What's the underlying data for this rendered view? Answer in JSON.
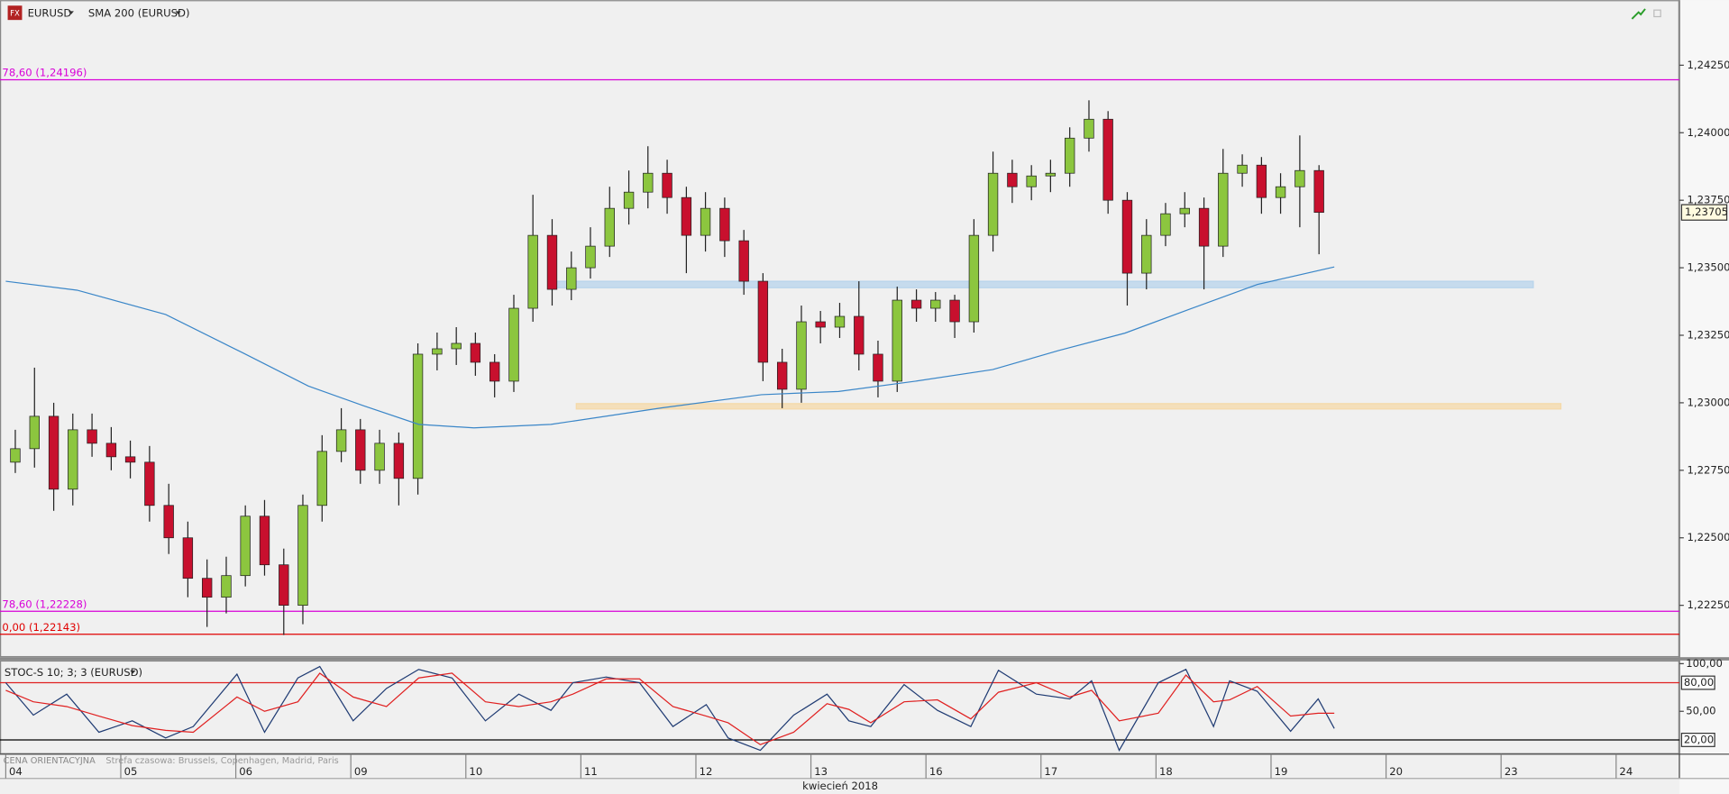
{
  "toolbar": {
    "icon": "FX",
    "symbol": "EURUSD"
  },
  "footer": {
    "price_type": "CENA ORIENTACYJNA",
    "timezone": "Strefa czasowa: Brussels, Copenhagen, Madrid, Paris"
  },
  "chart_data": [
    {
      "type": "candlestick",
      "symbol": "EURUSD",
      "up_color": "#8cc63f",
      "down_color": "#c8102e",
      "xlabel": "kwiecień 2018",
      "xlim": [
        -0.05,
        14.55
      ],
      "xticks": [
        {
          "value": 0,
          "label": "04"
        },
        {
          "value": 1,
          "label": "05"
        },
        {
          "value": 2,
          "label": "06"
        },
        {
          "value": 3,
          "label": "09"
        },
        {
          "value": 4,
          "label": "10"
        },
        {
          "value": 5,
          "label": "11"
        },
        {
          "value": 6,
          "label": "12"
        },
        {
          "value": 7,
          "label": "13"
        },
        {
          "value": 8,
          "label": "16"
        },
        {
          "value": 9,
          "label": "17"
        },
        {
          "value": 10,
          "label": "18"
        },
        {
          "value": 11,
          "label": "19"
        },
        {
          "value": 12,
          "label": "20"
        },
        {
          "value": 13,
          "label": "23"
        },
        {
          "value": 14,
          "label": "24"
        }
      ],
      "ylim": [
        1.22058,
        1.24491
      ],
      "yticks": [
        {
          "value": 1.2225,
          "label": "1,22250"
        },
        {
          "value": 1.225,
          "label": "1,22500"
        },
        {
          "value": 1.2275,
          "label": "1,22750"
        },
        {
          "value": 1.23,
          "label": "1,23000"
        },
        {
          "value": 1.2325,
          "label": "1,23250"
        },
        {
          "value": 1.235,
          "label": "1,23500"
        },
        {
          "value": 1.2375,
          "label": "1,23750"
        },
        {
          "value": 1.24,
          "label": "1,24000"
        },
        {
          "value": 1.2425,
          "label": "1,24250"
        }
      ],
      "last_price": {
        "value": 1.23705,
        "label": "1,23705"
      },
      "x": [
        0.083,
        0.25,
        0.417,
        0.583,
        0.75,
        0.917,
        1.083,
        1.25,
        1.417,
        1.583,
        1.75,
        1.917,
        2.083,
        2.25,
        2.417,
        2.583,
        2.75,
        2.917,
        3.083,
        3.25,
        3.417,
        3.583,
        3.75,
        3.917,
        4.083,
        4.25,
        4.417,
        4.583,
        4.75,
        4.917,
        5.083,
        5.25,
        5.417,
        5.583,
        5.75,
        5.917,
        6.083,
        6.25,
        6.417,
        6.583,
        6.75,
        6.917,
        7.083,
        7.25,
        7.417,
        7.583,
        7.75,
        7.917,
        8.083,
        8.25,
        8.417,
        8.583,
        8.75,
        8.917,
        9.083,
        9.25,
        9.417,
        9.583,
        9.75,
        9.917,
        10.083,
        10.25,
        10.417,
        10.583,
        10.75,
        10.917,
        11.083,
        11.25,
        11.417
      ],
      "open": [
        1.2278,
        1.2283,
        1.2295,
        1.2268,
        1.229,
        1.2285,
        1.228,
        1.2278,
        1.2262,
        1.225,
        1.2235,
        1.2228,
        1.2236,
        1.2258,
        1.224,
        1.2225,
        1.2262,
        1.2282,
        1.229,
        1.2275,
        1.2285,
        1.2272,
        1.2318,
        1.232,
        1.2322,
        1.2315,
        1.2308,
        1.2335,
        1.2362,
        1.2342,
        1.235,
        1.2358,
        1.2372,
        1.2378,
        1.2385,
        1.2376,
        1.2362,
        1.2372,
        1.236,
        1.2345,
        1.2315,
        1.2305,
        1.233,
        1.2328,
        1.2332,
        1.2318,
        1.2308,
        1.2338,
        1.2335,
        1.2338,
        1.233,
        1.2362,
        1.2385,
        1.238,
        1.2384,
        1.2385,
        1.2398,
        1.2405,
        1.2375,
        1.2348,
        1.2362,
        1.237,
        1.2372,
        1.2358,
        1.2385,
        1.2388,
        1.2376,
        1.238,
        1.2386
      ],
      "high": [
        1.229,
        1.2313,
        1.23,
        1.2296,
        1.2296,
        1.2291,
        1.2286,
        1.2284,
        1.227,
        1.2256,
        1.2242,
        1.2243,
        1.2262,
        1.2264,
        1.2246,
        1.2266,
        1.2288,
        1.2298,
        1.2294,
        1.229,
        1.2289,
        1.2322,
        1.2326,
        1.2328,
        1.2326,
        1.2318,
        1.234,
        1.2377,
        1.2368,
        1.2356,
        1.2365,
        1.238,
        1.2386,
        1.2395,
        1.239,
        1.238,
        1.2378,
        1.2376,
        1.2364,
        1.2348,
        1.232,
        1.2336,
        1.2334,
        1.2337,
        1.2345,
        1.2323,
        1.2343,
        1.2342,
        1.2341,
        1.234,
        1.2368,
        1.2393,
        1.239,
        1.2388,
        1.239,
        1.2402,
        1.2412,
        1.2408,
        1.2378,
        1.2368,
        1.2374,
        1.2378,
        1.2376,
        1.2394,
        1.2392,
        1.2391,
        1.2385,
        1.2399,
        1.2388
      ],
      "low": [
        1.2274,
        1.2276,
        1.226,
        1.2262,
        1.228,
        1.2275,
        1.2272,
        1.2256,
        1.2244,
        1.2228,
        1.2217,
        1.2222,
        1.2232,
        1.2236,
        1.2214,
        1.2218,
        1.2256,
        1.2278,
        1.227,
        1.227,
        1.2262,
        1.2266,
        1.2312,
        1.2314,
        1.231,
        1.2302,
        1.2304,
        1.233,
        1.2336,
        1.2338,
        1.2346,
        1.2354,
        1.2366,
        1.2372,
        1.237,
        1.2348,
        1.2356,
        1.2354,
        1.234,
        1.2308,
        1.2298,
        1.23,
        1.2322,
        1.2324,
        1.2312,
        1.2302,
        1.2304,
        1.233,
        1.233,
        1.2324,
        1.2326,
        1.2356,
        1.2374,
        1.2375,
        1.2378,
        1.238,
        1.2393,
        1.237,
        1.2336,
        1.2342,
        1.2358,
        1.2365,
        1.2342,
        1.2354,
        1.238,
        1.237,
        1.237,
        1.2365,
        1.2355
      ],
      "close": [
        1.2283,
        1.2295,
        1.2268,
        1.229,
        1.2285,
        1.228,
        1.2278,
        1.2262,
        1.225,
        1.2235,
        1.2228,
        1.2236,
        1.2258,
        1.224,
        1.2225,
        1.2262,
        1.2282,
        1.229,
        1.2275,
        1.2285,
        1.2272,
        1.2318,
        1.232,
        1.2322,
        1.2315,
        1.2308,
        1.2335,
        1.2362,
        1.2342,
        1.235,
        1.2358,
        1.2372,
        1.2378,
        1.2385,
        1.2376,
        1.2362,
        1.2372,
        1.236,
        1.2345,
        1.2315,
        1.2305,
        1.233,
        1.2328,
        1.2332,
        1.2318,
        1.2308,
        1.2338,
        1.2335,
        1.2338,
        1.233,
        1.2362,
        1.2385,
        1.238,
        1.2384,
        1.2385,
        1.2398,
        1.2405,
        1.2375,
        1.2348,
        1.2362,
        1.237,
        1.2372,
        1.2358,
        1.2385,
        1.2388,
        1.2376,
        1.238,
        1.2386,
        1.23705
      ],
      "overlays": [
        {
          "name": "SMA 200 (EURUSD)",
          "color": "#3a86c8",
          "x": [
            0,
            0.62,
            1.39,
            2.06,
            2.63,
            3.11,
            3.59,
            4.07,
            4.74,
            5.7,
            6.57,
            7.24,
            7.91,
            8.58,
            9.15,
            9.73,
            10.3,
            10.88,
            11.55
          ],
          "values": [
            1.2345,
            1.23417,
            1.23327,
            1.23185,
            1.23062,
            1.22989,
            1.2292,
            1.22907,
            1.2292,
            1.22981,
            1.2303,
            1.23042,
            1.2308,
            1.23123,
            1.23193,
            1.23258,
            1.23348,
            1.23438,
            1.23503
          ]
        }
      ],
      "levels": [
        {
          "value": 1.24196,
          "label": "78,60 (1,24196)",
          "color": "#d800d8"
        },
        {
          "value": 1.22228,
          "label": "78,60 (1,22228)",
          "color": "#d800d8"
        },
        {
          "value": 1.22143,
          "label": "0,00 (1,22143)",
          "color": "#e00000"
        }
      ],
      "zones": [
        {
          "xlim": [
            4.79,
            13.28
          ],
          "ylim": [
            1.23426,
            1.2345
          ],
          "color": "#b8d4ec"
        },
        {
          "xlim": [
            4.96,
            13.52
          ],
          "ylim": [
            1.22977,
            1.22997
          ],
          "color": "#f5d9a8"
        }
      ]
    },
    {
      "type": "line",
      "title": "STOC-S 10; 3; 3 (EURUSD)",
      "xlim": [
        -0.05,
        14.55
      ],
      "ylim": [
        5,
        104.5
      ],
      "yticks": [
        {
          "value": 100,
          "label": "100,00"
        },
        {
          "value": 50,
          "label": "50,00"
        }
      ],
      "levels": [
        {
          "value": 80,
          "label": "80,00",
          "color": "#e02020"
        },
        {
          "value": 20,
          "label": "20,00",
          "color": "#000000"
        }
      ],
      "x": [
        0.0,
        0.24,
        0.53,
        0.81,
        1.1,
        1.39,
        1.63,
        2.01,
        2.25,
        2.54,
        2.73,
        3.02,
        3.31,
        3.59,
        3.88,
        4.17,
        4.46,
        4.74,
        4.93,
        5.22,
        5.51,
        5.8,
        6.09,
        6.28,
        6.56,
        6.85,
        7.14,
        7.33,
        7.52,
        7.81,
        8.1,
        8.39,
        8.63,
        8.96,
        9.25,
        9.44,
        9.68,
        10.02,
        10.26,
        10.5,
        10.64,
        10.88,
        11.17,
        11.41,
        11.55
      ],
      "series": [
        {
          "color": "#1f3b73",
          "values": [
            80,
            46,
            68,
            28,
            40,
            22,
            34,
            89,
            28,
            85,
            97,
            40,
            74,
            94,
            85,
            40,
            68,
            51,
            80,
            86,
            80,
            34,
            57,
            22,
            9,
            46,
            68,
            40,
            34,
            78,
            51,
            34,
            93,
            68,
            63,
            82,
            9,
            80,
            94,
            34,
            82,
            71,
            29,
            63,
            32
          ]
        },
        {
          "color": "#e02020",
          "values": [
            72,
            60,
            55,
            45,
            35,
            30,
            28,
            65,
            50,
            60,
            90,
            65,
            55,
            85,
            90,
            60,
            55,
            60,
            68,
            84,
            84,
            55,
            45,
            38,
            15,
            28,
            58,
            52,
            38,
            60,
            62,
            42,
            70,
            80,
            65,
            72,
            40,
            48,
            88,
            60,
            62,
            76,
            45,
            48,
            48
          ]
        }
      ]
    }
  ]
}
